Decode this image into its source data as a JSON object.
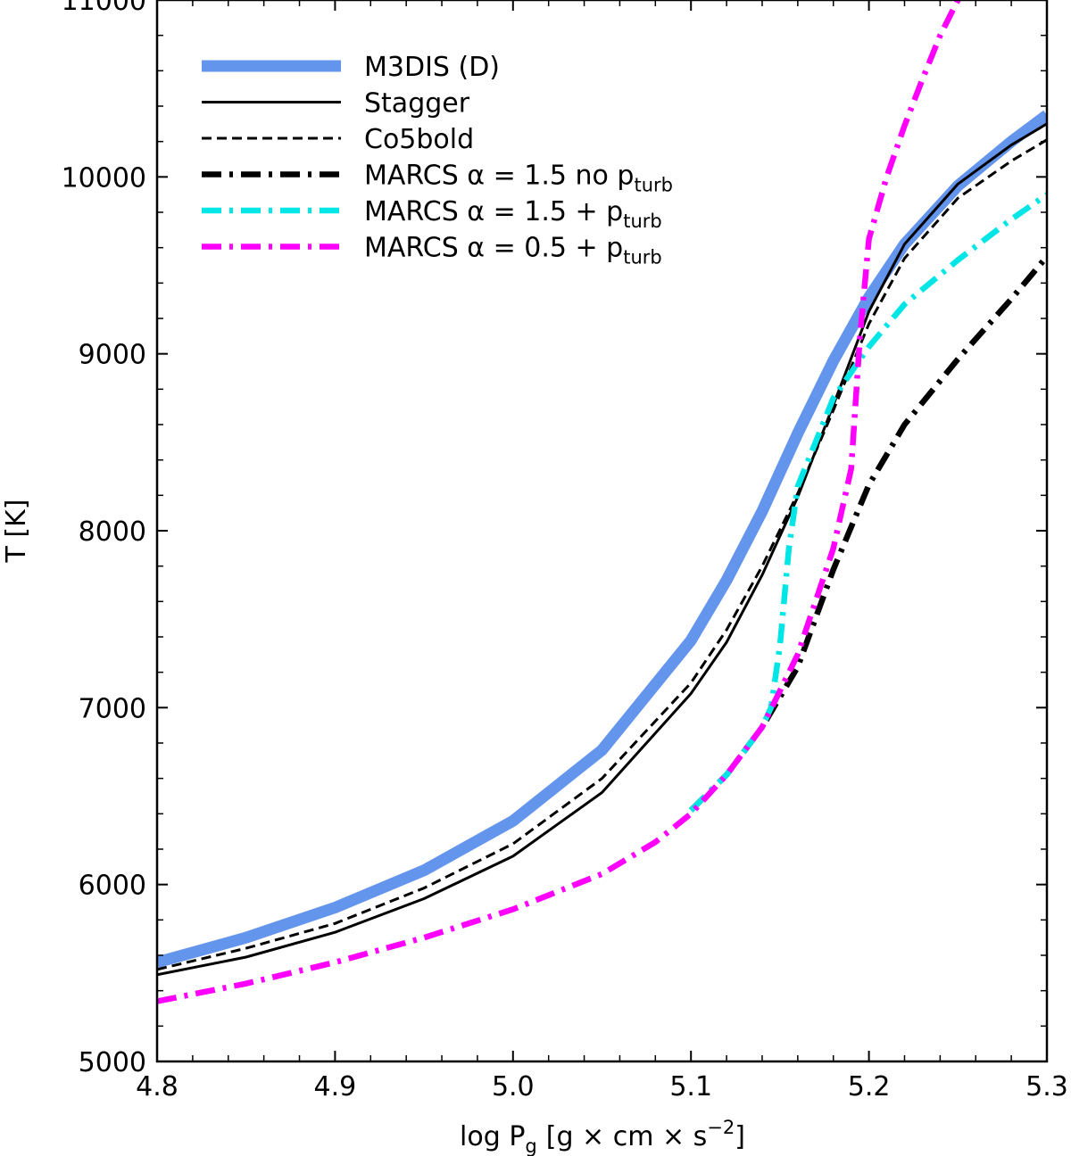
{
  "chart_data": {
    "type": "line",
    "xlabel": "log P_g [g × cm × s^−2]",
    "xlabel_parts": {
      "main": "log P",
      "sub": "g",
      "bracket": "[g × cm × s",
      "sup": "−2",
      "close": "]"
    },
    "ylabel": "T [K]",
    "xlim": [
      4.8,
      5.3
    ],
    "ylim": [
      5000,
      11000
    ],
    "x_ticks": [
      "4.8",
      "4.9",
      "5.0",
      "5.1",
      "5.2",
      "5.3"
    ],
    "y_ticks": [
      "5000",
      "6000",
      "7000",
      "8000",
      "9000",
      "10000",
      "11000"
    ],
    "grid": false,
    "legend_position": "upper-left",
    "series": [
      {
        "name": "M3DIS (D)",
        "legend": {
          "main": "M3DIS (D)",
          "sub": ""
        },
        "color": "#6495ed",
        "style": "solid",
        "weight": "extra-thick",
        "x": [
          4.8,
          4.85,
          4.9,
          4.95,
          5.0,
          5.05,
          5.1,
          5.12,
          5.14,
          5.16,
          5.18,
          5.2,
          5.22,
          5.25,
          5.28,
          5.3
        ],
        "y": [
          5560,
          5700,
          5870,
          6080,
          6360,
          6760,
          7380,
          7720,
          8110,
          8550,
          8960,
          9320,
          9620,
          9950,
          10200,
          10350
        ]
      },
      {
        "name": "Stagger",
        "legend": {
          "main": "Stagger",
          "sub": ""
        },
        "color": "#000000",
        "style": "solid",
        "weight": "normal",
        "x": [
          4.8,
          4.85,
          4.9,
          4.95,
          5.0,
          5.05,
          5.1,
          5.12,
          5.14,
          5.16,
          5.18,
          5.2,
          5.22,
          5.25,
          5.28,
          5.3
        ],
        "y": [
          5490,
          5590,
          5730,
          5920,
          6160,
          6520,
          7080,
          7370,
          7750,
          8190,
          8710,
          9240,
          9620,
          9960,
          10180,
          10300
        ]
      },
      {
        "name": "Co5bold",
        "legend": {
          "main": "Co5bold",
          "sub": ""
        },
        "color": "#000000",
        "style": "dashed",
        "weight": "normal",
        "x": [
          4.8,
          4.85,
          4.9,
          4.95,
          5.0,
          5.05,
          5.1,
          5.12,
          5.14,
          5.16,
          5.18,
          5.2,
          5.22,
          5.25,
          5.28,
          5.3
        ],
        "y": [
          5520,
          5640,
          5780,
          5980,
          6230,
          6600,
          7140,
          7440,
          7800,
          8210,
          8680,
          9170,
          9540,
          9880,
          10090,
          10210
        ]
      },
      {
        "name": "MARCS α = 1.5 no p_turb",
        "legend": {
          "main": "MARCS α = 1.5 no p",
          "sub": "turb"
        },
        "color": "#000000",
        "style": "dashdot",
        "weight": "thick",
        "x": [
          5.1,
          5.12,
          5.14,
          5.16,
          5.18,
          5.2,
          5.22,
          5.25,
          5.28,
          5.3
        ],
        "y": [
          6420,
          6620,
          6890,
          7230,
          7780,
          8260,
          8600,
          8970,
          9310,
          9550
        ]
      },
      {
        "name": "MARCS α = 1.5 + p_turb",
        "legend": {
          "main": "MARCS α = 1.5 + p",
          "sub": "turb"
        },
        "color": "#00e5e5",
        "style": "dashdot",
        "weight": "thick",
        "x": [
          5.1,
          5.12,
          5.14,
          5.145,
          5.15,
          5.155,
          5.16,
          5.18,
          5.2,
          5.22,
          5.25,
          5.28,
          5.3
        ],
        "y": [
          6420,
          6620,
          6890,
          7000,
          7350,
          7900,
          8250,
          8750,
          9040,
          9280,
          9530,
          9760,
          9900
        ]
      },
      {
        "name": "MARCS α = 0.5 + p_turb",
        "legend": {
          "main": "MARCS α = 0.5 + p",
          "sub": "turb"
        },
        "color": "#ff00ff",
        "style": "dashdot",
        "weight": "thick",
        "x": [
          4.8,
          4.85,
          4.9,
          4.95,
          5.0,
          5.05,
          5.08,
          5.1,
          5.12,
          5.14,
          5.16,
          5.18,
          5.19,
          5.195,
          5.2,
          5.21,
          5.22,
          5.23,
          5.24,
          5.25,
          5.255
        ],
        "y": [
          5340,
          5440,
          5560,
          5700,
          5860,
          6060,
          6240,
          6400,
          6620,
          6890,
          7300,
          7900,
          8350,
          9100,
          9650,
          10000,
          10290,
          10550,
          10800,
          11000,
          11080
        ]
      }
    ]
  }
}
